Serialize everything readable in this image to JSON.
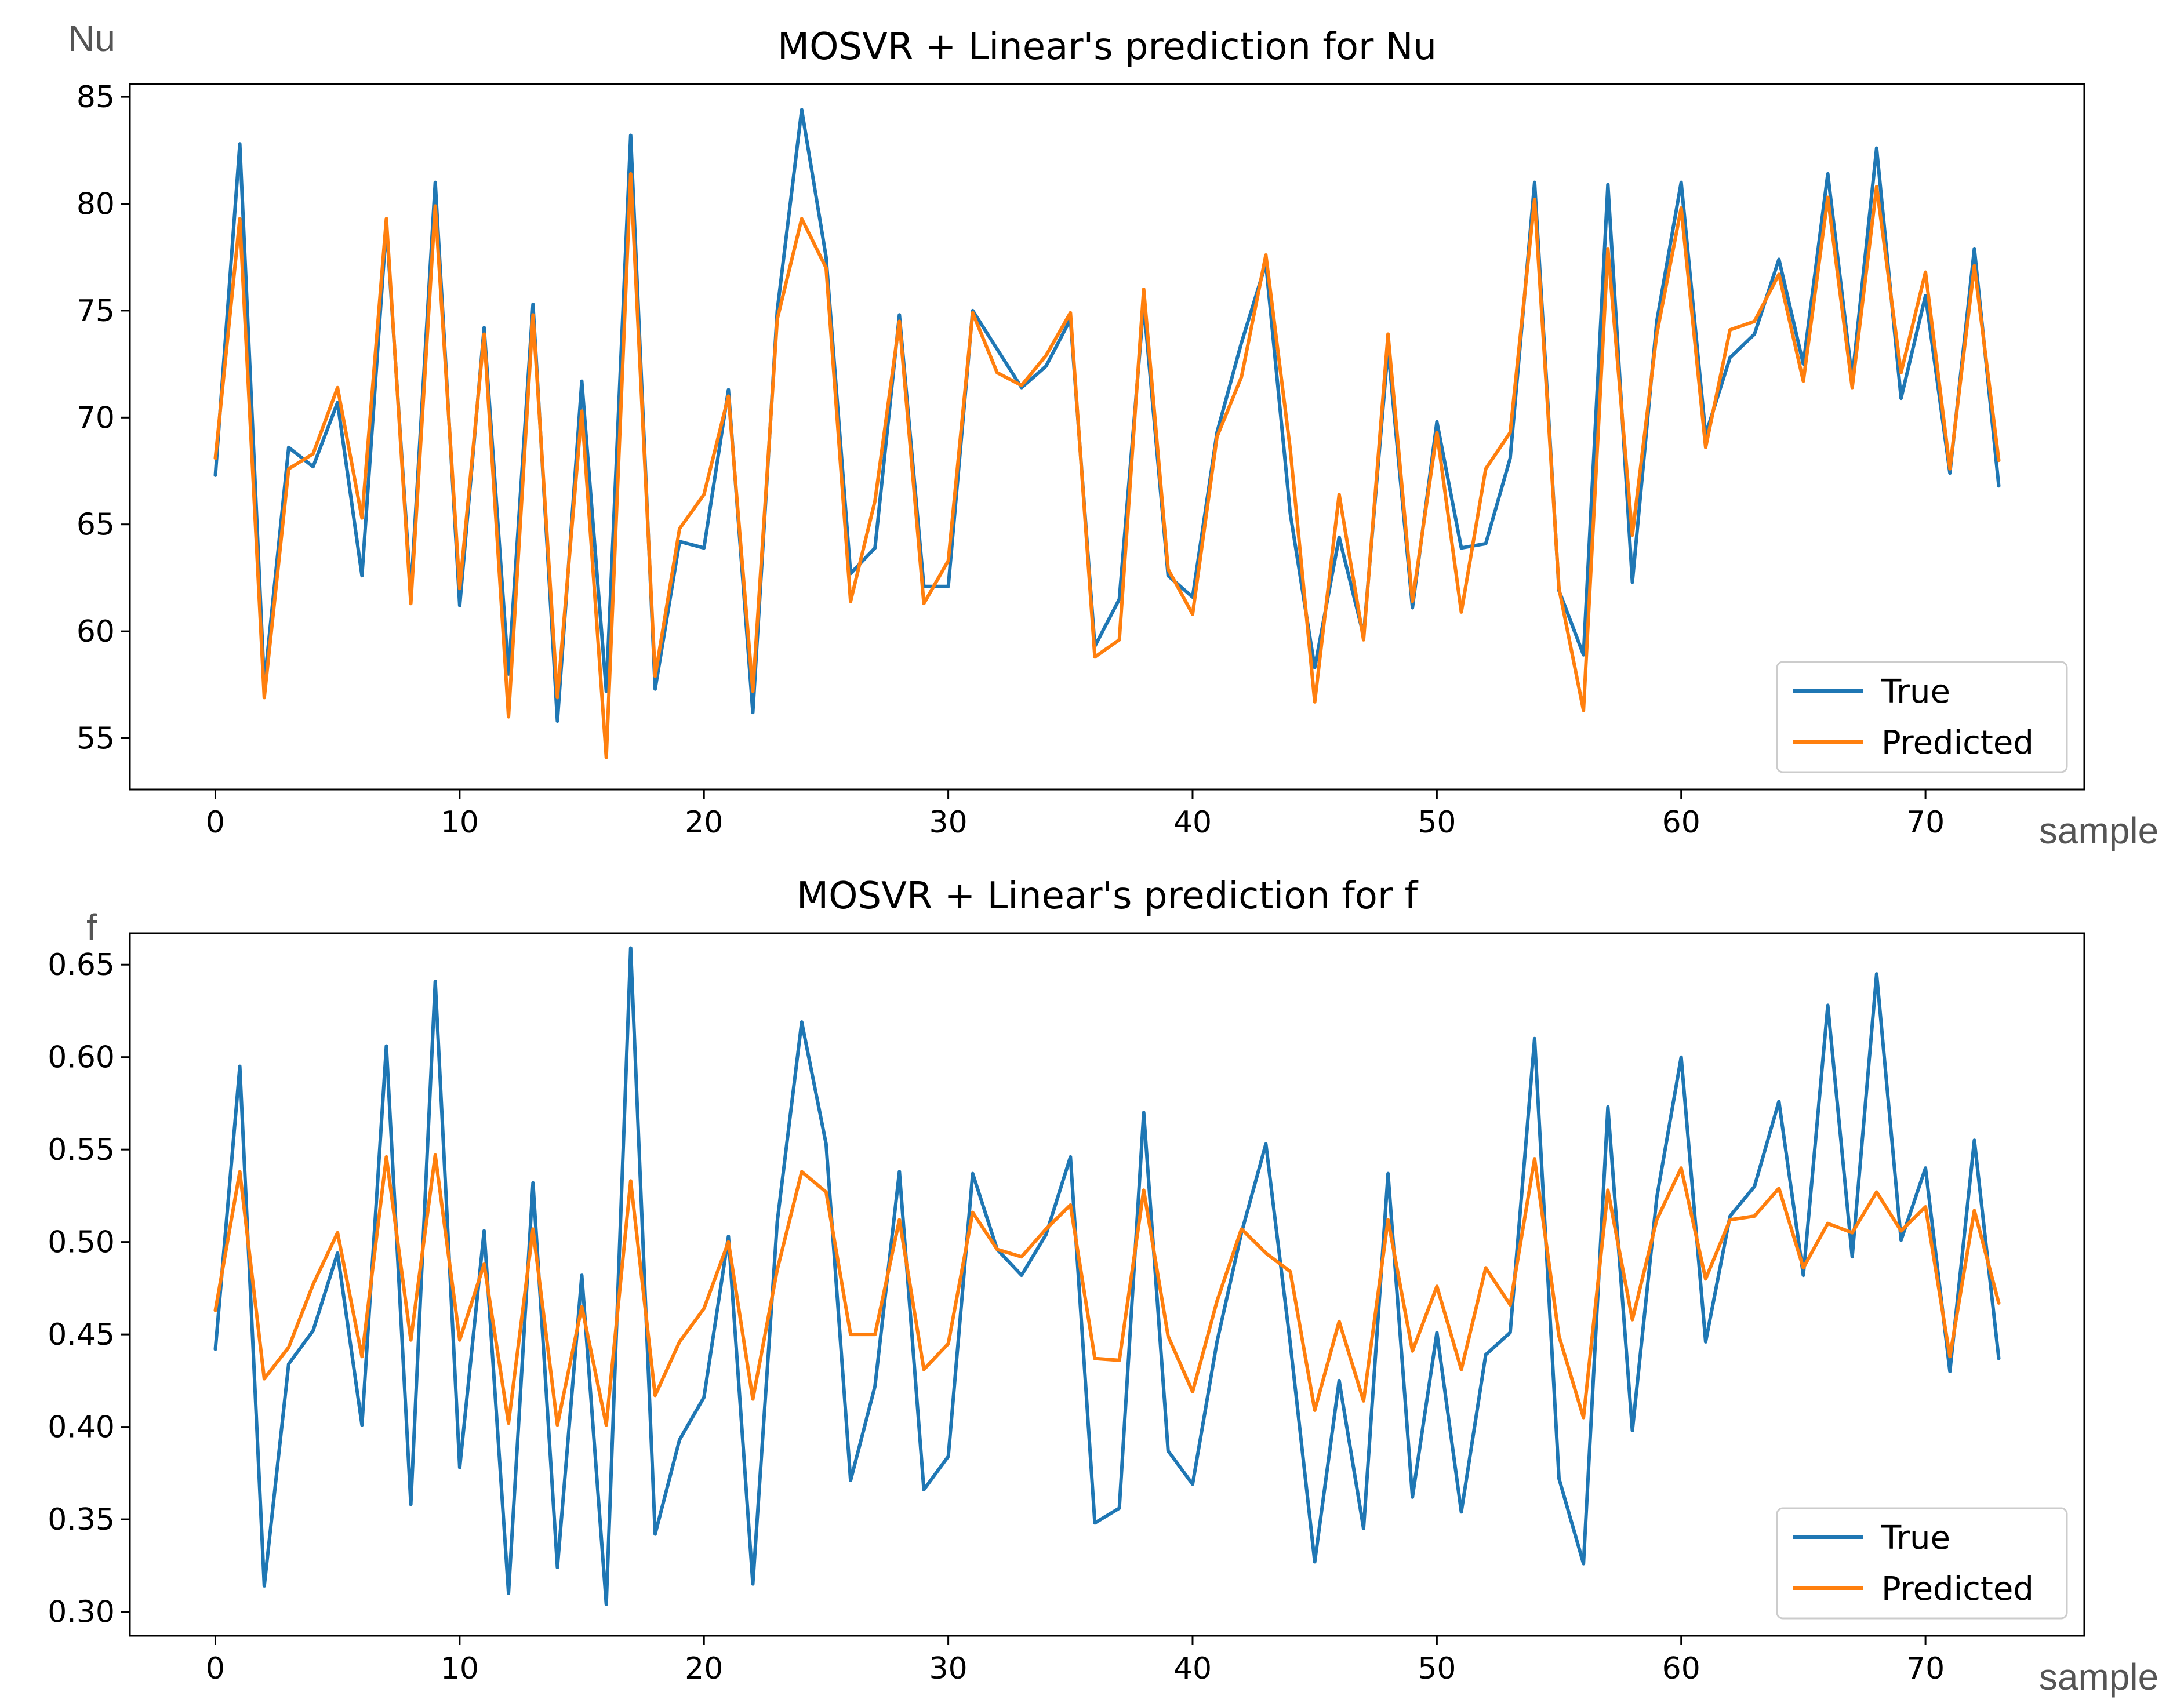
{
  "colors": {
    "true_series": "#1f77b4",
    "predicted_series": "#ff7f0e",
    "axes": "#000000"
  },
  "chart_data": [
    {
      "type": "line",
      "title": "MOSVR + Linear's prediction for Nu",
      "ylabel": "Nu",
      "xlabel": "sample",
      "xlim": [
        -3.5,
        76.5
      ],
      "ylim": [
        52.6,
        85.6
      ],
      "xticks": [
        0,
        10,
        20,
        30,
        40,
        50,
        60,
        70
      ],
      "yticks": [
        55,
        60,
        65,
        70,
        75,
        80,
        85
      ],
      "ytick_decimals": 0,
      "legend_position": "lower-right",
      "grid": false,
      "x": [
        0,
        1,
        2,
        3,
        4,
        5,
        6,
        7,
        8,
        9,
        10,
        11,
        12,
        13,
        14,
        15,
        16,
        17,
        18,
        19,
        20,
        21,
        22,
        23,
        24,
        25,
        26,
        27,
        28,
        29,
        30,
        31,
        32,
        33,
        34,
        35,
        36,
        37,
        38,
        39,
        40,
        41,
        42,
        43,
        44,
        45,
        46,
        47,
        48,
        49,
        50,
        51,
        52,
        53,
        54,
        55,
        56,
        57,
        58,
        59,
        60,
        61,
        62,
        63,
        64,
        65,
        66,
        67,
        68,
        69,
        70,
        71,
        72,
        73
      ],
      "series": [
        {
          "name": "True",
          "color": "#1f77b4",
          "values": [
            67.3,
            82.8,
            57.5,
            68.6,
            67.7,
            70.7,
            62.6,
            79.0,
            61.8,
            81.0,
            61.2,
            74.2,
            58.0,
            75.3,
            55.8,
            71.7,
            57.2,
            83.2,
            57.3,
            64.2,
            63.9,
            71.3,
            56.2,
            75.0,
            84.4,
            77.5,
            62.7,
            63.9,
            74.8,
            62.1,
            62.1,
            75.0,
            73.2,
            71.4,
            72.4,
            74.6,
            59.3,
            61.5,
            75.3,
            62.6,
            61.6,
            69.3,
            73.5,
            77.2,
            65.5,
            58.3,
            64.4,
            59.8,
            73.2,
            61.1,
            69.8,
            63.9,
            64.1,
            68.1,
            81.0,
            61.9,
            58.9,
            80.9,
            62.3,
            74.5,
            81.0,
            69.2,
            72.8,
            73.9,
            77.4,
            72.5,
            81.4,
            71.8,
            82.6,
            70.9,
            75.7,
            67.4,
            77.9,
            66.8
          ]
        },
        {
          "name": "Predicted",
          "color": "#ff7f0e",
          "values": [
            68.1,
            79.3,
            56.9,
            67.6,
            68.3,
            71.4,
            65.3,
            79.3,
            61.3,
            79.9,
            62.0,
            73.9,
            56.0,
            74.8,
            56.9,
            70.3,
            54.1,
            81.4,
            57.9,
            64.8,
            66.4,
            71.0,
            57.2,
            74.6,
            79.3,
            77.0,
            61.4,
            66.1,
            74.5,
            61.3,
            63.3,
            74.9,
            72.1,
            71.5,
            72.9,
            74.9,
            58.8,
            59.6,
            76.0,
            62.9,
            60.8,
            69.1,
            71.9,
            77.6,
            68.5,
            56.7,
            66.4,
            59.6,
            73.9,
            61.4,
            69.3,
            60.9,
            67.6,
            69.3,
            80.2,
            62.0,
            56.3,
            77.9,
            64.5,
            73.9,
            79.8,
            68.6,
            74.1,
            74.5,
            76.7,
            71.7,
            80.3,
            71.4,
            80.8,
            72.1,
            76.8,
            67.6,
            77.1,
            68.0
          ]
        }
      ]
    },
    {
      "type": "line",
      "title": "MOSVR + Linear's prediction for f",
      "ylabel": "f",
      "xlabel": "sample",
      "xlim": [
        -3.5,
        76.5
      ],
      "ylim": [
        0.287,
        0.667
      ],
      "xticks": [
        0,
        10,
        20,
        30,
        40,
        50,
        60,
        70
      ],
      "yticks": [
        0.3,
        0.35,
        0.4,
        0.45,
        0.5,
        0.55,
        0.6,
        0.65
      ],
      "ytick_decimals": 2,
      "legend_position": "lower-right",
      "grid": false,
      "x": [
        0,
        1,
        2,
        3,
        4,
        5,
        6,
        7,
        8,
        9,
        10,
        11,
        12,
        13,
        14,
        15,
        16,
        17,
        18,
        19,
        20,
        21,
        22,
        23,
        24,
        25,
        26,
        27,
        28,
        29,
        30,
        31,
        32,
        33,
        34,
        35,
        36,
        37,
        38,
        39,
        40,
        41,
        42,
        43,
        44,
        45,
        46,
        47,
        48,
        49,
        50,
        51,
        52,
        53,
        54,
        55,
        56,
        57,
        58,
        59,
        60,
        61,
        62,
        63,
        64,
        65,
        66,
        67,
        68,
        69,
        70,
        71,
        72,
        73
      ],
      "series": [
        {
          "name": "True",
          "color": "#1f77b4",
          "values": [
            0.442,
            0.595,
            0.314,
            0.434,
            0.452,
            0.494,
            0.401,
            0.606,
            0.358,
            0.641,
            0.378,
            0.506,
            0.31,
            0.532,
            0.324,
            0.482,
            0.304,
            0.659,
            0.342,
            0.393,
            0.416,
            0.503,
            0.315,
            0.511,
            0.619,
            0.553,
            0.371,
            0.422,
            0.538,
            0.366,
            0.384,
            0.537,
            0.496,
            0.482,
            0.504,
            0.546,
            0.348,
            0.356,
            0.57,
            0.387,
            0.369,
            0.446,
            0.505,
            0.553,
            0.445,
            0.327,
            0.425,
            0.345,
            0.537,
            0.362,
            0.451,
            0.354,
            0.439,
            0.451,
            0.61,
            0.372,
            0.326,
            0.573,
            0.398,
            0.524,
            0.6,
            0.446,
            0.514,
            0.53,
            0.576,
            0.482,
            0.628,
            0.492,
            0.645,
            0.501,
            0.54,
            0.43,
            0.555,
            0.437
          ]
        },
        {
          "name": "Predicted",
          "color": "#ff7f0e",
          "values": [
            0.463,
            0.538,
            0.426,
            0.443,
            0.477,
            0.505,
            0.438,
            0.546,
            0.447,
            0.547,
            0.447,
            0.488,
            0.402,
            0.507,
            0.401,
            0.465,
            0.401,
            0.533,
            0.417,
            0.446,
            0.464,
            0.5,
            0.415,
            0.485,
            0.538,
            0.527,
            0.45,
            0.45,
            0.512,
            0.431,
            0.445,
            0.516,
            0.496,
            0.492,
            0.507,
            0.52,
            0.437,
            0.436,
            0.528,
            0.449,
            0.419,
            0.468,
            0.507,
            0.494,
            0.484,
            0.409,
            0.457,
            0.414,
            0.512,
            0.441,
            0.476,
            0.431,
            0.486,
            0.466,
            0.545,
            0.449,
            0.405,
            0.528,
            0.458,
            0.512,
            0.54,
            0.48,
            0.512,
            0.514,
            0.529,
            0.486,
            0.51,
            0.505,
            0.527,
            0.506,
            0.519,
            0.438,
            0.517,
            0.467
          ]
        }
      ]
    }
  ]
}
